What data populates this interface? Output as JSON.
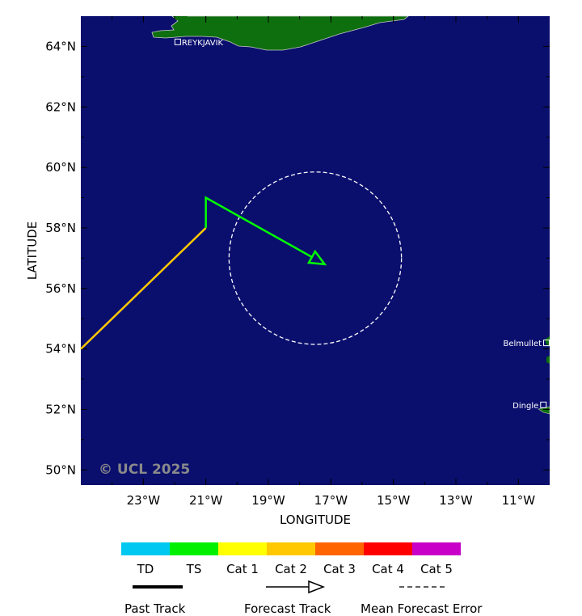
{
  "map": {
    "watermark": "© UCL 2025",
    "xlabel": "LONGITUDE",
    "ylabel": "LATITUDE",
    "lon_range": [
      -25,
      -10
    ],
    "lat_range": [
      49.5,
      65
    ],
    "lon_ticks": [
      "23°W",
      "21°W",
      "19°W",
      "17°W",
      "15°W",
      "13°W",
      "11°W"
    ],
    "lon_tick_values": [
      -23,
      -21,
      -19,
      -17,
      -15,
      -13,
      -11
    ],
    "lat_ticks": [
      "64°N",
      "62°N",
      "60°N",
      "58°N",
      "56°N",
      "54°N",
      "52°N",
      "50°N"
    ],
    "lat_tick_values": [
      64,
      62,
      60,
      58,
      56,
      54,
      52,
      50
    ],
    "colors": {
      "ocean": "#0a0f6e",
      "land": "#0e6f0e",
      "past_track": "#ffc800",
      "forecast_track": "#00ff00",
      "error_circle": "#ffffff"
    }
  },
  "cities": [
    {
      "name": "REYKJAVIK",
      "lon": -21.9,
      "lat": 64.15,
      "label_side": "right"
    },
    {
      "name": "Belmullet",
      "lon": -10.0,
      "lat": 54.2,
      "label_side": "left"
    },
    {
      "name": "Dingle",
      "lon": -10.2,
      "lat": 52.15,
      "label_side": "left"
    }
  ],
  "past_track": [
    {
      "lon": -25.0,
      "lat": 54.0
    },
    {
      "lon": -21.0,
      "lat": 58.0
    }
  ],
  "forecast_track": [
    {
      "lon": -21.0,
      "lat": 58.0
    },
    {
      "lon": -21.0,
      "lat": 59.0
    },
    {
      "lon": -17.2,
      "lat": 56.8
    }
  ],
  "error_circle": {
    "lon": -17.5,
    "lat": 57.0,
    "radius_deg_lat": 2.85
  },
  "legend": {
    "categories": [
      {
        "label": "TD",
        "color": "#00c8f0"
      },
      {
        "label": "TS",
        "color": "#00f000"
      },
      {
        "label": "Cat 1",
        "color": "#ffff00"
      },
      {
        "label": "Cat 2",
        "color": "#ffc800"
      },
      {
        "label": "Cat 3",
        "color": "#ff6400"
      },
      {
        "label": "Cat 4",
        "color": "#ff0000"
      },
      {
        "label": "Cat 5",
        "color": "#c800c8"
      }
    ],
    "past_track_label": "Past Track",
    "forecast_track_label": "Forecast Track",
    "error_label": "Mean Forecast Error"
  }
}
